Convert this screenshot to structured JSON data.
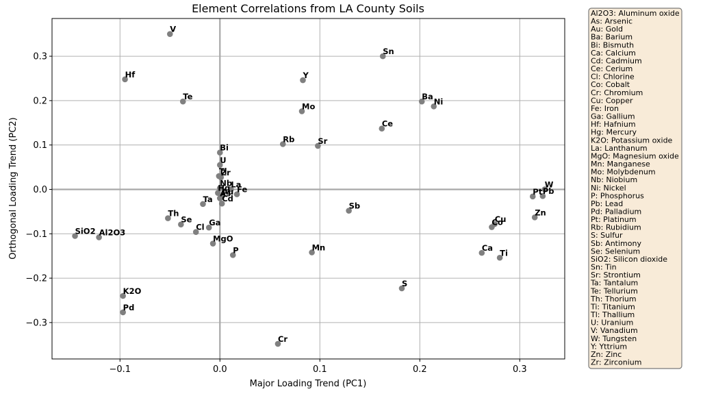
{
  "chart_data": {
    "type": "scatter",
    "title": "Element Correlations from LA County Soils",
    "xlabel": "Major Loading Trend (PC1)",
    "ylabel": "Orthogonal Loading Trend (PC2)",
    "xlim": [
      -0.168,
      0.345
    ],
    "ylim": [
      -0.382,
      0.385
    ],
    "xticks": [
      -0.1,
      0.0,
      0.1,
      0.2,
      0.3
    ],
    "yticks": [
      -0.3,
      -0.2,
      -0.1,
      0.0,
      0.1,
      0.2,
      0.3
    ],
    "xtick_labels": [
      "−0.1",
      "0.0",
      "0.1",
      "0.2",
      "0.3"
    ],
    "ytick_labels": [
      "−0.3",
      "−0.2",
      "−0.1",
      "0.0",
      "0.1",
      "0.2",
      "0.3"
    ],
    "grid": true,
    "zero_lines": true,
    "marker_color": "#808080",
    "legend_placement": "outside-right",
    "points": [
      {
        "label": "V",
        "x": -0.05,
        "y": 0.35
      },
      {
        "label": "Sn",
        "x": 0.163,
        "y": 0.3
      },
      {
        "label": "Hf",
        "x": -0.095,
        "y": 0.248
      },
      {
        "label": "Y",
        "x": 0.083,
        "y": 0.246
      },
      {
        "label": "Te",
        "x": -0.037,
        "y": 0.198
      },
      {
        "label": "Ba",
        "x": 0.202,
        "y": 0.198
      },
      {
        "label": "Ni",
        "x": 0.214,
        "y": 0.187
      },
      {
        "label": "Mo",
        "x": 0.082,
        "y": 0.176
      },
      {
        "label": "Ce",
        "x": 0.162,
        "y": 0.137
      },
      {
        "label": "Rb",
        "x": 0.063,
        "y": 0.102
      },
      {
        "label": "Sr",
        "x": 0.098,
        "y": 0.098
      },
      {
        "label": "Bi",
        "x": 0.0,
        "y": 0.083
      },
      {
        "label": "U",
        "x": 0.0,
        "y": 0.055
      },
      {
        "label": "Tl",
        "x": -0.001,
        "y": 0.03
      },
      {
        "label": "Zr",
        "x": 0.001,
        "y": 0.027
      },
      {
        "label": "Nb",
        "x": 0.0,
        "y": 0.003
      },
      {
        "label": "La",
        "x": 0.011,
        "y": 0.0
      },
      {
        "label": "Hg",
        "x": -0.002,
        "y": -0.008
      },
      {
        "label": "Au",
        "x": 0.002,
        "y": -0.016
      },
      {
        "label": "Fe",
        "x": 0.017,
        "y": -0.011
      },
      {
        "label": "As",
        "x": 0.0,
        "y": -0.02
      },
      {
        "label": "Ta",
        "x": -0.017,
        "y": -0.033
      },
      {
        "label": "Cd",
        "x": 0.002,
        "y": -0.032
      },
      {
        "label": "W",
        "x": 0.325,
        "y": 0.0
      },
      {
        "label": "Pt",
        "x": 0.313,
        "y": -0.016
      },
      {
        "label": "Pb",
        "x": 0.323,
        "y": -0.015
      },
      {
        "label": "Zn",
        "x": 0.315,
        "y": -0.063
      },
      {
        "label": "Cu",
        "x": 0.275,
        "y": -0.078
      },
      {
        "label": "Co",
        "x": 0.272,
        "y": -0.085
      },
      {
        "label": "Sb",
        "x": 0.129,
        "y": -0.048
      },
      {
        "label": "Th",
        "x": -0.052,
        "y": -0.065
      },
      {
        "label": "Se",
        "x": -0.039,
        "y": -0.079
      },
      {
        "label": "Ga",
        "x": -0.011,
        "y": -0.086
      },
      {
        "label": "Cl",
        "x": -0.024,
        "y": -0.096
      },
      {
        "label": "SiO2",
        "x": -0.145,
        "y": -0.105
      },
      {
        "label": "Al2O3",
        "x": -0.121,
        "y": -0.108
      },
      {
        "label": "MgO",
        "x": -0.007,
        "y": -0.122
      },
      {
        "label": "P",
        "x": 0.013,
        "y": -0.148
      },
      {
        "label": "Mn",
        "x": 0.092,
        "y": -0.142
      },
      {
        "label": "Ca",
        "x": 0.262,
        "y": -0.143
      },
      {
        "label": "Ti",
        "x": 0.28,
        "y": -0.154
      },
      {
        "label": "S",
        "x": 0.182,
        "y": -0.223
      },
      {
        "label": "K2O",
        "x": -0.097,
        "y": -0.24
      },
      {
        "label": "Pd",
        "x": -0.097,
        "y": -0.277
      },
      {
        "label": "Cr",
        "x": 0.058,
        "y": -0.348
      }
    ]
  },
  "legend": {
    "background": "#f8ebd8",
    "border": "#7a7a7a",
    "entries": [
      "Al2O3: Aluminum oxide",
      "As: Arsenic",
      "Au: Gold",
      "Ba: Barium",
      "Bi: Bismuth",
      "Ca: Calcium",
      "Cd: Cadmium",
      "Ce: Cerium",
      "Cl: Chlorine",
      "Co: Cobalt",
      "Cr: Chromium",
      "Cu: Copper",
      "Fe: Iron",
      "Ga: Gallium",
      "Hf: Hafnium",
      "Hg: Mercury",
      "K2O: Potassium oxide",
      "La: Lanthanum",
      "MgO: Magnesium oxide",
      "Mn: Manganese",
      "Mo: Molybdenum",
      "Nb: Niobium",
      "Ni: Nickel",
      "P: Phosphorus",
      "Pb: Lead",
      "Pd: Palladium",
      "Pt: Platinum",
      "Rb: Rubidium",
      "S: Sulfur",
      "Sb: Antimony",
      "Se: Selenium",
      "SiO2: Silicon dioxide",
      "Sn: Tin",
      "Sr: Strontium",
      "Ta: Tantalum",
      "Te: Tellurium",
      "Th: Thorium",
      "Ti: Titanium",
      "Tl: Thallium",
      "U: Uranium",
      "V: Vanadium",
      "W: Tungsten",
      "Y: Yttrium",
      "Zn: Zinc",
      "Zr: Zirconium"
    ]
  }
}
